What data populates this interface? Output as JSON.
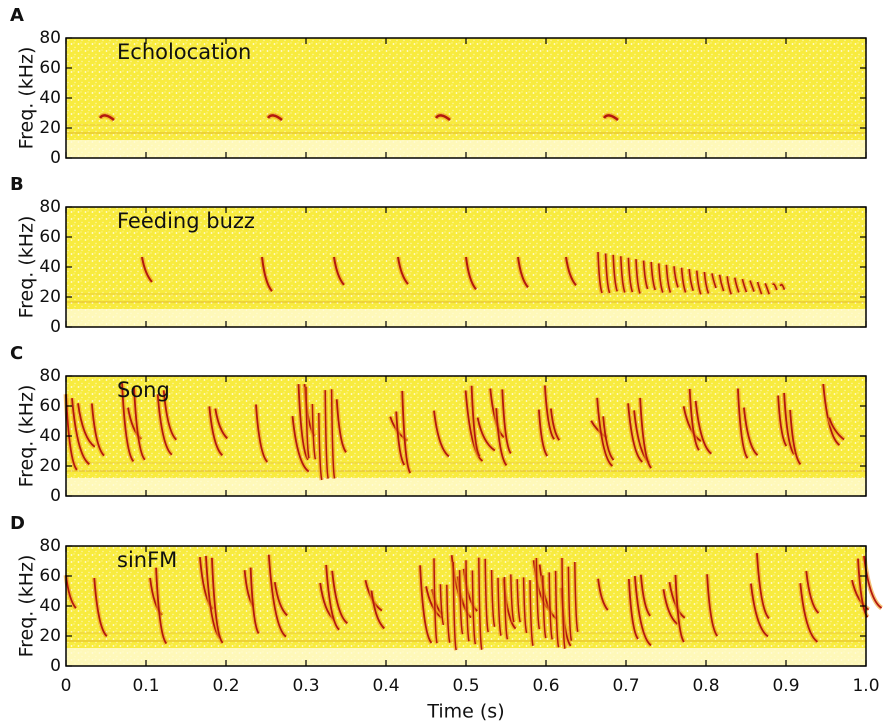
{
  "chart_data": [
    {
      "type": "spectrogram",
      "panel": "A",
      "title": "Echolocation",
      "ylabel": "Freq. (kHz)",
      "xlim": [
        0,
        1
      ],
      "ylim": [
        0,
        80
      ],
      "yticks": [
        0,
        20,
        40,
        60,
        80
      ]
    },
    {
      "type": "spectrogram",
      "panel": "B",
      "title": "Feeding buzz",
      "ylabel": "Freq. (kHz)",
      "xlim": [
        0,
        1
      ],
      "ylim": [
        0,
        80
      ],
      "yticks": [
        0,
        20,
        40,
        60,
        80
      ]
    },
    {
      "type": "spectrogram",
      "panel": "C",
      "title": "Song",
      "ylabel": "Freq. (kHz)",
      "xlim": [
        0,
        1
      ],
      "ylim": [
        0,
        80
      ],
      "yticks": [
        0,
        20,
        40,
        60,
        80
      ]
    },
    {
      "type": "spectrogram",
      "panel": "D",
      "title": "sinFM",
      "ylabel": "Freq. (kHz)",
      "xlabel": "Time (s)",
      "xlim": [
        0,
        1
      ],
      "ylim": [
        0,
        80
      ],
      "yticks": [
        0,
        20,
        40,
        60,
        80
      ],
      "xticks": [
        0,
        0.1,
        0.2,
        0.3,
        0.4,
        0.5,
        0.6,
        0.7,
        0.8,
        0.9,
        {
          "value": 1,
          "label": "1.0"
        }
      ]
    }
  ]
}
